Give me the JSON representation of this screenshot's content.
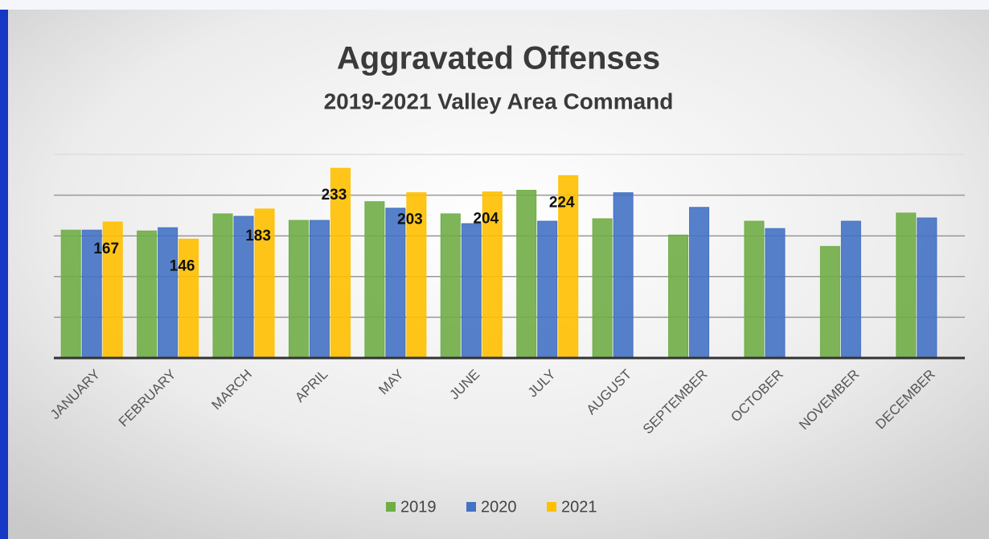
{
  "chart_data": {
    "type": "bar",
    "title": "Aggravated Offenses",
    "subtitle": "2019-2021 Valley Area Command",
    "categories": [
      "JANUARY",
      "FEBRUARY",
      "MARCH",
      "APRIL",
      "MAY",
      "JUNE",
      "JULY",
      "AUGUST",
      "SEPTEMBER",
      "OCTOBER",
      "NOVEMBER",
      "DECEMBER"
    ],
    "series": [
      {
        "name": "2019",
        "color": "#70ad47",
        "values": [
          157,
          156,
          177,
          169,
          192,
          177,
          206,
          171,
          151,
          168,
          137,
          178
        ]
      },
      {
        "name": "2020",
        "color": "#4472c4",
        "values": [
          157,
          160,
          174,
          169,
          184,
          165,
          168,
          203,
          185,
          159,
          168,
          172
        ]
      },
      {
        "name": "2021",
        "color": "#ffc000",
        "values": [
          167,
          146,
          183,
          233,
          203,
          204,
          224,
          null,
          null,
          null,
          null,
          null
        ],
        "show_labels": true
      }
    ],
    "ylim": [
      0,
      250
    ],
    "yticks": [
      0,
      50,
      100,
      150,
      200,
      250
    ],
    "grid": true,
    "legend": "bottom"
  }
}
